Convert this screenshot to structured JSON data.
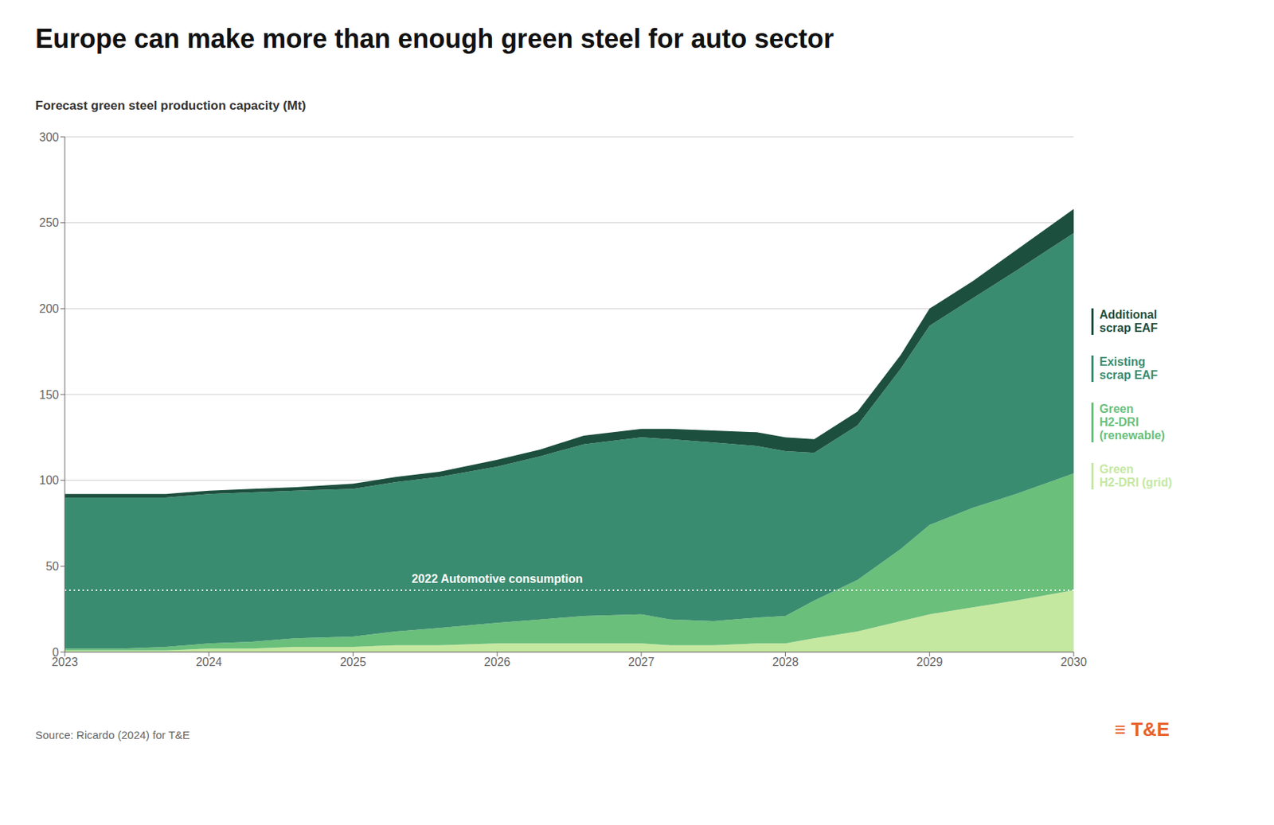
{
  "chart_data": {
    "type": "area",
    "stacked": true,
    "title": "Europe can make more than enough green steel for auto sector",
    "y_label": "Forecast green steel production capacity (Mt)",
    "x": [
      2023,
      2023.15,
      2023.4,
      2023.7,
      2024,
      2024.3,
      2024.6,
      2025,
      2025.3,
      2025.6,
      2026,
      2026.3,
      2026.6,
      2027,
      2027.2,
      2027.5,
      2027.8,
      2028,
      2028.2,
      2028.5,
      2028.8,
      2029,
      2029.3,
      2029.6,
      2029.8,
      2030
    ],
    "series": [
      {
        "name": "Green\nH2-DRI (grid)",
        "color": "#c5e8a0",
        "values": [
          1,
          1,
          1,
          1,
          2,
          2,
          3,
          3,
          4,
          4,
          5,
          5,
          5,
          5,
          4,
          4,
          5,
          5,
          8,
          12,
          18,
          22,
          26,
          30,
          33,
          36
        ]
      },
      {
        "name": "Green\nH2-DRI\n(renewable)",
        "color": "#6abf7b",
        "values": [
          1,
          1,
          1,
          2,
          3,
          4,
          5,
          6,
          8,
          10,
          12,
          14,
          16,
          17,
          15,
          14,
          15,
          16,
          22,
          30,
          42,
          52,
          58,
          62,
          65,
          68
        ]
      },
      {
        "name": "Existing\nscrap EAF",
        "color": "#3a8c70",
        "values": [
          88,
          88,
          88,
          87,
          87,
          87,
          86,
          86,
          87,
          88,
          91,
          95,
          100,
          103,
          105,
          104,
          100,
          96,
          86,
          90,
          105,
          116,
          122,
          130,
          135,
          140
        ]
      },
      {
        "name": "Additional\nscrap EAF",
        "color": "#1d4f3e",
        "values": [
          2,
          2,
          2,
          2,
          2,
          2,
          2,
          3,
          3,
          3,
          4,
          4,
          5,
          5,
          6,
          7,
          8,
          8,
          8,
          8,
          8,
          10,
          10,
          12,
          13,
          14
        ]
      }
    ],
    "xlim": [
      2023,
      2030
    ],
    "xticks": [
      2023,
      2024,
      2025,
      2026,
      2027,
      2028,
      2029,
      2030
    ],
    "ylim": [
      0,
      300
    ],
    "yticks": [
      0,
      50,
      100,
      150,
      200,
      250,
      300
    ],
    "grid": true,
    "legend": "right",
    "annotations": [
      {
        "text": "2022 Automotive consumption",
        "x": 2026,
        "y": 36,
        "line_style": "dotted",
        "color": "#ffffff"
      },
      {
        "text": "Source: Ricardo (2024) for T&E"
      },
      {
        "text": "≡ T&E",
        "color": "#e8622c"
      }
    ]
  }
}
